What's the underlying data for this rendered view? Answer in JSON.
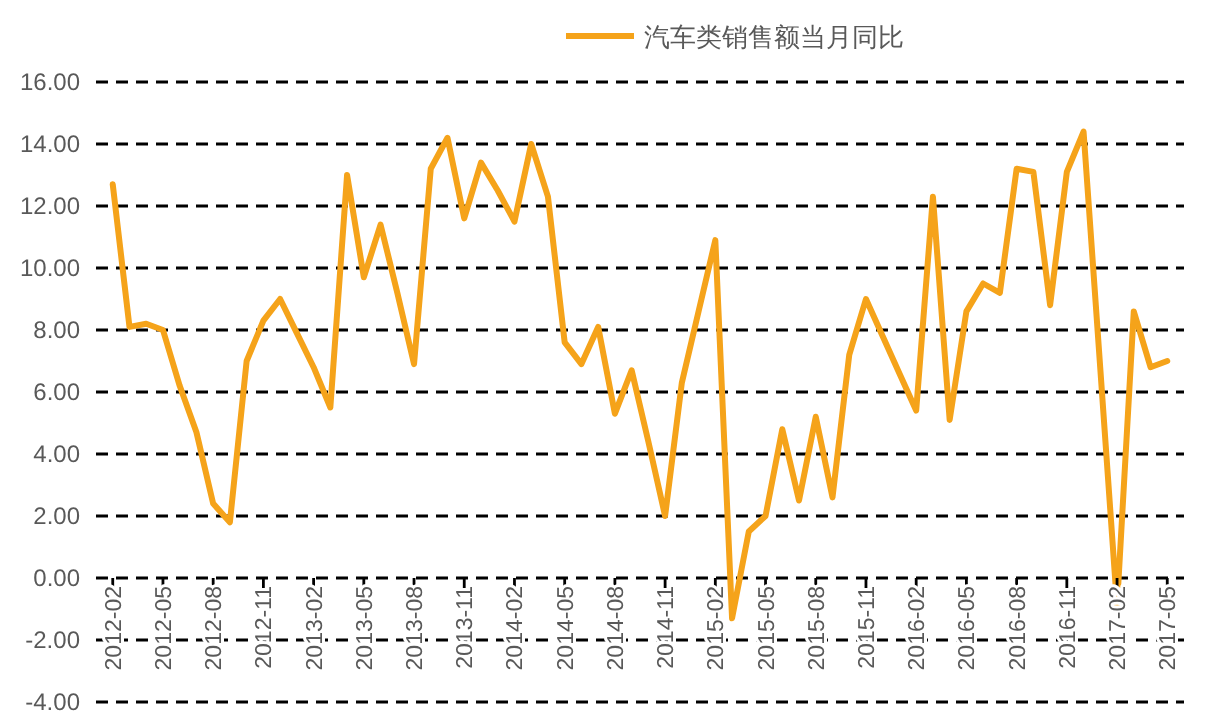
{
  "chart_data": {
    "type": "line",
    "x": [
      "2012-02",
      "2012-03",
      "2012-04",
      "2012-05",
      "2012-06",
      "2012-07",
      "2012-08",
      "2012-09",
      "2012-10",
      "2012-11",
      "2012-12",
      "2013-01",
      "2013-02",
      "2013-03",
      "2013-04",
      "2013-05",
      "2013-06",
      "2013-07",
      "2013-08",
      "2013-09",
      "2013-10",
      "2013-11",
      "2013-12",
      "2014-01",
      "2014-02",
      "2014-03",
      "2014-04",
      "2014-05",
      "2014-06",
      "2014-07",
      "2014-08",
      "2014-09",
      "2014-10",
      "2014-11",
      "2014-12",
      "2015-01",
      "2015-02",
      "2015-03",
      "2015-04",
      "2015-05",
      "2015-06",
      "2015-07",
      "2015-08",
      "2015-09",
      "2015-10",
      "2015-11",
      "2015-12",
      "2016-01",
      "2016-02",
      "2016-03",
      "2016-04",
      "2016-05",
      "2016-06",
      "2016-07",
      "2016-08",
      "2016-09",
      "2016-10",
      "2016-11",
      "2016-12",
      "2017-02",
      "2017-03",
      "2017-04",
      "2017-05"
    ],
    "series": [
      {
        "name": "汽车类销售额当月同比",
        "color": "#f5a31a",
        "values": [
          12.7,
          8.1,
          8.2,
          8.0,
          6.2,
          4.7,
          2.4,
          1.8,
          7.0,
          8.3,
          9.0,
          7.9,
          6.8,
          5.5,
          13.0,
          9.7,
          11.4,
          9.2,
          6.9,
          13.2,
          14.2,
          11.6,
          13.4,
          12.5,
          11.5,
          14.0,
          12.3,
          7.6,
          6.9,
          8.1,
          5.3,
          6.7,
          4.4,
          2.0,
          6.3,
          8.6,
          10.9,
          -1.3,
          1.5,
          2.0,
          4.8,
          2.5,
          5.2,
          2.6,
          7.2,
          9.0,
          7.8,
          6.6,
          5.4,
          12.3,
          5.1,
          8.6,
          9.5,
          9.2,
          13.2,
          13.1,
          8.8,
          13.1,
          14.4,
          -0.9,
          8.6,
          6.8,
          7.0
        ]
      }
    ],
    "xlim": [
      "2012-01",
      "2017-06"
    ],
    "xticks": [
      "2012-02",
      "2012-05",
      "2012-08",
      "2012-11",
      "2013-02",
      "2013-05",
      "2013-08",
      "2013-11",
      "2014-02",
      "2014-05",
      "2014-08",
      "2014-11",
      "2015-02",
      "2015-05",
      "2015-08",
      "2015-11",
      "2016-02",
      "2016-05",
      "2016-08",
      "2016-11",
      "2017-02",
      "2017-05"
    ],
    "ylim": [
      -4,
      16
    ],
    "yticks": [
      {
        "value": -4,
        "label": "-4.00"
      },
      {
        "value": -2,
        "label": "-2.00"
      },
      {
        "value": 0,
        "label": "0.00"
      },
      {
        "value": 2,
        "label": "2.00"
      },
      {
        "value": 4,
        "label": "4.00"
      },
      {
        "value": 6,
        "label": "6.00"
      },
      {
        "value": 8,
        "label": "8.00"
      },
      {
        "value": 10,
        "label": "10.00"
      },
      {
        "value": 12,
        "label": "12.00"
      },
      {
        "value": 14,
        "label": "14.00"
      },
      {
        "value": 16,
        "label": "16.00"
      }
    ],
    "grid": "y",
    "legend": "top"
  }
}
